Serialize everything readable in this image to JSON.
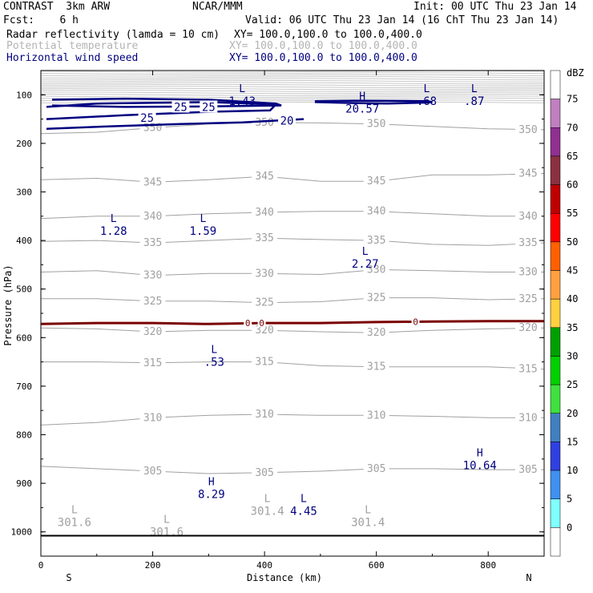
{
  "header": {
    "model": "CONTRAST  3km ARW",
    "org": "NCAR/MMM",
    "init": "Init: 00 UTC Thu 23 Jan 14",
    "fcst": "Fcst:    6 h",
    "valid": "Valid: 06 UTC Thu 23 Jan 14 (16 ChT Thu 23 Jan 14)",
    "line1_label": "Radar reflectivity (lamda = 10 cm)",
    "line1_xy": "XY= 100.0,100.0 to 100.0,400.0",
    "line2_label": "Potential temperature",
    "line2_xy": "XY= 100.0,100.0 to 100.0,400.0",
    "line3_label": "Horizontal wind speed",
    "line3_xy": "XY= 100.0,100.0 to 100.0,400.0"
  },
  "colors": {
    "navy": "#000080",
    "theta": "#a0a0a0",
    "zero_contour": "#7a0000"
  },
  "chart_data": {
    "type": "contour",
    "title": "Radar reflectivity / Potential temperature / Horizontal wind speed cross-section",
    "xlabel": "Distance (km)",
    "ylabel": "Pressure (hPa)",
    "xlim": [
      0,
      900
    ],
    "ylim": [
      1050,
      50
    ],
    "x_ticks": [
      0,
      200,
      400,
      600,
      800
    ],
    "x_tick_labels": [
      "0",
      "200",
      "400",
      "600",
      "800"
    ],
    "y_ticks": [
      100,
      200,
      300,
      400,
      500,
      600,
      700,
      800,
      900,
      1000
    ],
    "y_tick_labels": [
      "100",
      "200",
      "300",
      "400",
      "500",
      "600",
      "700",
      "800",
      "900",
      "1000"
    ],
    "end_labels": {
      "left": "S",
      "right": "N"
    },
    "surface_pressure": 1008,
    "theta_contours": [
      {
        "label": "350",
        "points": [
          [
            0,
            180
          ],
          [
            100,
            177
          ],
          [
            200,
            168
          ],
          [
            300,
            160
          ],
          [
            400,
            157
          ],
          [
            500,
            158
          ],
          [
            600,
            160
          ],
          [
            700,
            165
          ],
          [
            800,
            170
          ],
          [
            900,
            172
          ]
        ]
      },
      {
        "label": "345",
        "points": [
          [
            0,
            275
          ],
          [
            100,
            272
          ],
          [
            200,
            280
          ],
          [
            300,
            275
          ],
          [
            400,
            268
          ],
          [
            500,
            278
          ],
          [
            600,
            278
          ],
          [
            700,
            265
          ],
          [
            800,
            265
          ],
          [
            900,
            262
          ]
        ]
      },
      {
        "label": "340",
        "points": [
          [
            0,
            355
          ],
          [
            100,
            350
          ],
          [
            200,
            350
          ],
          [
            300,
            345
          ],
          [
            400,
            342
          ],
          [
            500,
            340
          ],
          [
            600,
            340
          ],
          [
            700,
            345
          ],
          [
            800,
            350
          ],
          [
            900,
            350
          ]
        ]
      },
      {
        "label": "335",
        "points": [
          [
            0,
            402
          ],
          [
            100,
            400
          ],
          [
            200,
            405
          ],
          [
            300,
            400
          ],
          [
            400,
            395
          ],
          [
            500,
            398
          ],
          [
            600,
            400
          ],
          [
            700,
            408
          ],
          [
            800,
            410
          ],
          [
            900,
            405
          ]
        ]
      },
      {
        "label": "330",
        "points": [
          [
            0,
            465
          ],
          [
            100,
            462
          ],
          [
            200,
            472
          ],
          [
            300,
            468
          ],
          [
            400,
            468
          ],
          [
            500,
            470
          ],
          [
            600,
            460
          ],
          [
            700,
            462
          ],
          [
            800,
            465
          ],
          [
            900,
            465
          ]
        ]
      },
      {
        "label": "325",
        "points": [
          [
            0,
            520
          ],
          [
            100,
            520
          ],
          [
            200,
            525
          ],
          [
            300,
            525
          ],
          [
            400,
            528
          ],
          [
            500,
            526
          ],
          [
            600,
            518
          ],
          [
            700,
            518
          ],
          [
            800,
            522
          ],
          [
            900,
            520
          ]
        ]
      },
      {
        "label": "320",
        "points": [
          [
            0,
            580
          ],
          [
            100,
            582
          ],
          [
            200,
            588
          ],
          [
            300,
            585
          ],
          [
            400,
            585
          ],
          [
            500,
            588
          ],
          [
            600,
            590
          ],
          [
            700,
            585
          ],
          [
            800,
            582
          ],
          [
            900,
            580
          ]
        ]
      },
      {
        "label": "315",
        "points": [
          [
            0,
            650
          ],
          [
            100,
            650
          ],
          [
            200,
            652
          ],
          [
            300,
            650
          ],
          [
            400,
            650
          ],
          [
            500,
            658
          ],
          [
            600,
            660
          ],
          [
            700,
            660
          ],
          [
            800,
            660
          ],
          [
            900,
            665
          ]
        ]
      },
      {
        "label": "310",
        "points": [
          [
            0,
            780
          ],
          [
            100,
            775
          ],
          [
            200,
            765
          ],
          [
            300,
            760
          ],
          [
            400,
            758
          ],
          [
            500,
            760
          ],
          [
            600,
            760
          ],
          [
            700,
            762
          ],
          [
            800,
            765
          ],
          [
            900,
            765
          ]
        ]
      },
      {
        "label": "305",
        "points": [
          [
            0,
            865
          ],
          [
            100,
            870
          ],
          [
            200,
            875
          ],
          [
            300,
            880
          ],
          [
            400,
            878
          ],
          [
            500,
            875
          ],
          [
            600,
            870
          ],
          [
            700,
            870
          ],
          [
            800,
            872
          ],
          [
            900,
            872
          ]
        ]
      }
    ],
    "zero_contour": {
      "label": "0",
      "points": [
        [
          0,
          572
        ],
        [
          100,
          570
        ],
        [
          200,
          570
        ],
        [
          300,
          572
        ],
        [
          400,
          570
        ],
        [
          500,
          570
        ],
        [
          600,
          568
        ],
        [
          700,
          567
        ],
        [
          800,
          566
        ],
        [
          900,
          566
        ]
      ]
    },
    "wind_contours": [
      {
        "label": "25",
        "points": [
          [
            20,
            110
          ],
          [
            150,
            108
          ],
          [
            300,
            110
          ],
          [
            420,
            118
          ],
          [
            430,
            122
          ],
          [
            300,
            124
          ],
          [
            150,
            125
          ],
          [
            20,
            122
          ]
        ]
      },
      {
        "label": "20",
        "points": [
          [
            10,
            150
          ],
          [
            150,
            142
          ],
          [
            300,
            135
          ],
          [
            410,
            132
          ],
          [
            420,
            120
          ],
          [
            300,
            115
          ],
          [
            100,
            118
          ],
          [
            10,
            125
          ]
        ]
      },
      {
        "label": "20",
        "points": [
          [
            10,
            170
          ],
          [
            120,
            165
          ],
          [
            250,
            160
          ],
          [
            360,
            157
          ],
          [
            470,
            150
          ]
        ]
      }
    ],
    "wind_labels": [
      {
        "x": 250,
        "p": 125,
        "text": "25"
      },
      {
        "x": 300,
        "p": 125,
        "text": "25"
      },
      {
        "x": 190,
        "p": 147,
        "text": "25"
      },
      {
        "x": 440,
        "p": 153,
        "text": "20"
      }
    ],
    "extrema": [
      {
        "type": "L",
        "x": 360,
        "p": 88,
        "value": "1.43",
        "color": "navy"
      },
      {
        "type": "L",
        "x": 690,
        "p": 88,
        "value": ".68",
        "color": "navy"
      },
      {
        "type": "L",
        "x": 775,
        "p": 88,
        "value": ".87",
        "color": "navy"
      },
      {
        "type": "H",
        "x": 575,
        "p": 104,
        "value": "20.57",
        "color": "navy"
      },
      {
        "type": "L",
        "x": 130,
        "p": 355,
        "value": "1.28",
        "color": "navy"
      },
      {
        "type": "L",
        "x": 290,
        "p": 355,
        "value": "1.59",
        "color": "navy"
      },
      {
        "type": "L",
        "x": 580,
        "p": 423,
        "value": "2.27",
        "color": "navy"
      },
      {
        "type": "L",
        "x": 310,
        "p": 625,
        "value": ".53",
        "color": "navy"
      },
      {
        "type": "H",
        "x": 785,
        "p": 838,
        "value": "10.64",
        "color": "navy"
      },
      {
        "type": "H",
        "x": 305,
        "p": 897,
        "value": "8.29",
        "color": "navy"
      },
      {
        "type": "L",
        "x": 470,
        "p": 932,
        "value": "4.45",
        "color": "navy"
      },
      {
        "type": "L",
        "x": 405,
        "p": 932,
        "value": "301.4",
        "color": "theta"
      },
      {
        "type": "L",
        "x": 60,
        "p": 955,
        "value": "301.6",
        "color": "theta"
      },
      {
        "type": "L",
        "x": 585,
        "p": 955,
        "value": "301.4",
        "color": "theta"
      },
      {
        "type": "L",
        "x": 225,
        "p": 975,
        "value": "301.6",
        "color": "theta"
      }
    ],
    "colorbar": {
      "title": "dBZ",
      "labels": [
        "75",
        "70",
        "65",
        "60",
        "55",
        "50",
        "45",
        "40",
        "35",
        "30",
        "25",
        "20",
        "15",
        "10",
        "5",
        "0"
      ],
      "colors": [
        "#ffffff",
        "#c080c0",
        "#903090",
        "#8c3040",
        "#c00000",
        "#ff0000",
        "#ff6000",
        "#ffa040",
        "#ffd040",
        "#00a000",
        "#00d000",
        "#40e040",
        "#4080c0",
        "#3040e0",
        "#4090f0",
        "#80ffff",
        "#ffffff"
      ]
    }
  }
}
